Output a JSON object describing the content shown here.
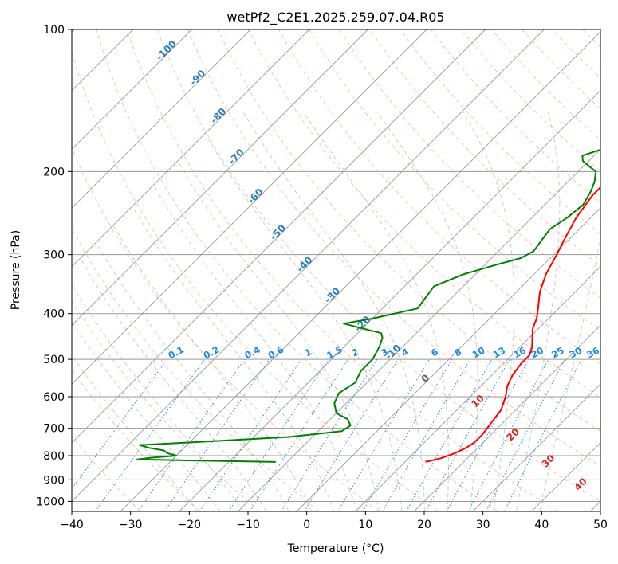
{
  "chart_data": {
    "type": "line",
    "title": "wetPf2_C2E1.2025.259.07.04.R05",
    "xlabel": "Temperature (°C)",
    "ylabel": "Pressure (hPa)",
    "xlim": [
      -40,
      50
    ],
    "ylim": [
      1050,
      100
    ],
    "x_ticks": [
      "−40",
      "−30",
      "−20",
      "−10",
      "0",
      "10",
      "20",
      "30",
      "40",
      "50"
    ],
    "x_tick_values": [
      -40,
      -30,
      -20,
      -10,
      0,
      10,
      20,
      30,
      40,
      50
    ],
    "y_ticks": [
      "100",
      "200",
      "300",
      "400",
      "500",
      "600",
      "700",
      "800",
      "900",
      "1000"
    ],
    "y_tick_values": [
      100,
      200,
      300,
      400,
      500,
      600,
      700,
      800,
      900,
      1000
    ],
    "colors": {
      "temperature": "#ff0000",
      "dewpoint": "#008000",
      "isotherm": "#999999",
      "dry_adiabat": "#ffa07a",
      "moist_adiabat": "#8fbc8f",
      "mixing_ratio": "#1e88e5",
      "isotherm_label": "#2c7fb8",
      "adiabat_label": "#d62728"
    },
    "isotherm_labels": [
      {
        "temp": -100,
        "p": 112,
        "text": "-100"
      },
      {
        "temp": -90,
        "p": 128,
        "text": "-90"
      },
      {
        "temp": -80,
        "p": 154,
        "text": "-80"
      },
      {
        "temp": -70,
        "p": 188,
        "text": "-70"
      },
      {
        "temp": -60,
        "p": 228,
        "text": "-60"
      },
      {
        "temp": -50,
        "p": 272,
        "text": "-50"
      },
      {
        "temp": -40,
        "p": 318,
        "text": "-40"
      },
      {
        "temp": -30,
        "p": 370,
        "text": "-30"
      },
      {
        "temp": -20,
        "p": 425,
        "text": "-20"
      },
      {
        "temp": -10,
        "p": 488,
        "text": "-10"
      },
      {
        "temp": 0,
        "p": 555,
        "text": "0"
      }
    ],
    "dry_adiabat_labels": [
      {
        "x": 29.5,
        "p": 620,
        "text": "10"
      },
      {
        "x": 35.5,
        "p": 730,
        "text": "20"
      },
      {
        "x": 41.5,
        "p": 830,
        "text": "30"
      },
      {
        "x": 47.0,
        "p": 930,
        "text": "40"
      }
    ],
    "mixing_ratio_labels": [
      "0.1",
      "0.2",
      "0.4",
      "0.6",
      "1",
      "1.5",
      "2",
      "3",
      "4",
      "6",
      "8",
      "10",
      "13",
      "16",
      "20",
      "25",
      "30",
      "36"
    ],
    "mixing_ratio_label_x": [
      -22,
      -16,
      -9,
      -5,
      0.5,
      5,
      8.5,
      13.5,
      17,
      22,
      26,
      29.5,
      33,
      36.5,
      39.5,
      43,
      46,
      49
    ],
    "temperature_profile": {
      "name": "Temperature",
      "p": [
        100,
        110,
        120,
        135,
        150,
        165,
        180,
        190,
        200,
        210,
        225,
        250,
        275,
        300,
        330,
        360,
        390,
        410,
        430,
        450,
        470,
        490,
        510,
        540,
        570,
        600,
        640,
        680,
        720,
        750,
        770,
        790,
        810,
        825
      ],
      "t": [
        16.5,
        15,
        12,
        8,
        5,
        3,
        1.5,
        -0.5,
        -2.5,
        -3.5,
        -3.5,
        -2.5,
        -1,
        0.5,
        2,
        4,
        6.5,
        8,
        9,
        10.5,
        12,
        13,
        13,
        13.5,
        14.5,
        16,
        17.5,
        18,
        18.5,
        18.5,
        18,
        17,
        15.5,
        13.5
      ]
    },
    "dewpoint_profile": {
      "name": "Dewpoint",
      "p": [
        100,
        110,
        120,
        135,
        150,
        160,
        170,
        180,
        185,
        190,
        195,
        200,
        210,
        220,
        235,
        250,
        265,
        280,
        295,
        305,
        315,
        330,
        350,
        370,
        390,
        410,
        420,
        430,
        440,
        450,
        470,
        500,
        530,
        560,
        590,
        620,
        650,
        670,
        690,
        710,
        730,
        745,
        760,
        770,
        780,
        790,
        800,
        808,
        815,
        820,
        825
      ],
      "t": [
        2,
        -2,
        -3,
        -4,
        -5,
        -7,
        -9,
        -10,
        -12,
        -11,
        -9,
        -7,
        -5.5,
        -4.5,
        -3.5,
        -4,
        -5,
        -4.5,
        -4,
        -5,
        -8,
        -12,
        -15,
        -14.5,
        -14,
        -20,
        -24,
        -20,
        -16,
        -15,
        -14,
        -13,
        -13,
        -12,
        -13,
        -12,
        -10,
        -7,
        -5.5,
        -6,
        -14,
        -26,
        -38,
        -36,
        -33,
        -32,
        -30,
        -34,
        -36,
        -24,
        -12
      ]
    }
  }
}
